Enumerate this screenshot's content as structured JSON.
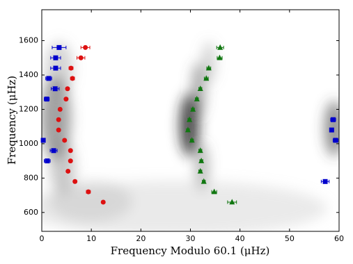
{
  "chart_data": {
    "type": "scatter",
    "xlabel": "Frequency Modulo 60.1 (μHz)",
    "ylabel": "Frequency (μHz)",
    "xlim": [
      0,
      60
    ],
    "xticks": [
      0,
      10,
      20,
      30,
      40,
      50,
      60
    ],
    "ylim": [
      490,
      1780
    ],
    "yticks": [
      600,
      800,
      1000,
      1200,
      1400,
      1600
    ],
    "series": [
      {
        "color": "#0000cc",
        "marker": "square",
        "x": [
          3.5,
          2.8,
          2.8,
          1.4,
          2.7,
          1.0,
          0.3,
          2.4,
          1.1,
          58.8,
          58.5,
          59.3,
          57.2
        ],
        "values": [
          1560,
          1500,
          1440,
          1380,
          1320,
          1260,
          1020,
          960,
          900,
          1140,
          1080,
          1020,
          780
        ],
        "xerr": [
          1.4,
          1.0,
          1.0,
          0.6,
          0.8,
          0.5,
          0.4,
          0.7,
          0.6,
          0.5,
          0.4,
          0.5,
          0.8
        ]
      },
      {
        "color": "#dd1111",
        "marker": "circle",
        "x": [
          8.8,
          7.9,
          5.9,
          6.2,
          5.2,
          4.9,
          3.7,
          3.4,
          3.4,
          4.6,
          5.8,
          5.8,
          5.3,
          6.7,
          9.4,
          12.4
        ],
        "values": [
          1560,
          1500,
          1440,
          1380,
          1320,
          1260,
          1200,
          1140,
          1080,
          1020,
          960,
          900,
          840,
          780,
          720,
          660
        ],
        "xerr": [
          0.9,
          0.8,
          0.4,
          0.4,
          0.3,
          0.3,
          0.3,
          0.3,
          0.3,
          0.3,
          0.3,
          0.3,
          0.3,
          0.3,
          0.4,
          0.3
        ]
      },
      {
        "color": "#117711",
        "marker": "triangle",
        "x": [
          36.0,
          35.9,
          33.7,
          33.2,
          32.0,
          31.3,
          30.5,
          29.8,
          29.5,
          30.3,
          32.0,
          32.2,
          32.0,
          32.7,
          34.8,
          38.4
        ],
        "values": [
          1560,
          1500,
          1440,
          1380,
          1320,
          1260,
          1200,
          1140,
          1080,
          1020,
          960,
          900,
          840,
          780,
          720,
          660
        ],
        "xerr": [
          0.7,
          0.5,
          0.4,
          0.4,
          0.3,
          0.3,
          0.3,
          0.3,
          0.3,
          0.3,
          0.3,
          0.3,
          0.3,
          0.3,
          0.5,
          0.9
        ]
      }
    ]
  }
}
